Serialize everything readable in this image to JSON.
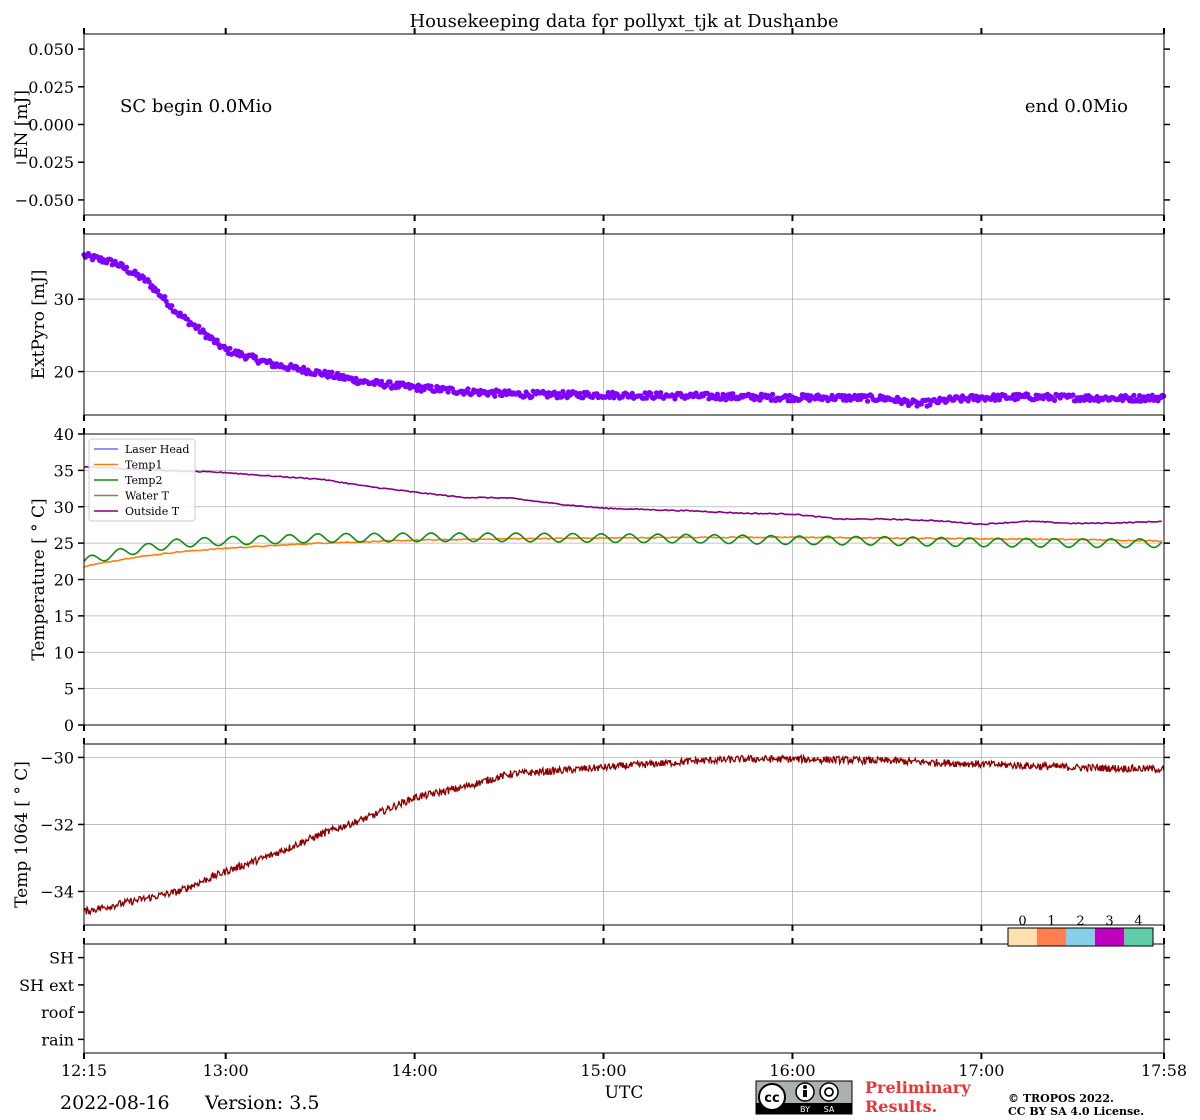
{
  "title": "Housekeeping data for pollyxt_tjk at Dushanbe",
  "footer": {
    "date": "2022-08-16",
    "version": "Version: 3.5",
    "preliminary_line1": "Preliminary",
    "preliminary_line2": "Results.",
    "copyright_line1": "© TROPOS 2022.",
    "copyright_line2": "CC BY SA 4.0 License.",
    "license_badge": {
      "cc": "cc",
      "by": "BY",
      "sa": "SA"
    }
  },
  "chart_data": [
    {
      "type": "line",
      "panel": "energy",
      "ylabel": "EN [mJ]",
      "ylim": [
        -0.06,
        0.06
      ],
      "yticks": [
        "0.050",
        "0.025",
        "0.000",
        "−0.025",
        "−0.050"
      ],
      "ytick_values": [
        0.05,
        0.025,
        0.0,
        -0.025,
        -0.05
      ],
      "annotations": [
        "SC begin 0.0Mio",
        "end 0.0Mio"
      ],
      "x_range": [
        "12:15",
        "17:58"
      ]
    },
    {
      "type": "scatter",
      "panel": "extpyro",
      "ylabel": "ExtPyro [mJ]",
      "ylim": [
        14,
        39
      ],
      "yticks": [
        "30",
        "20"
      ],
      "ytick_values": [
        30,
        20
      ],
      "color": "#8000ff",
      "x": [
        "12:15",
        "12:25",
        "12:35",
        "12:45",
        "13:00",
        "13:15",
        "13:30",
        "13:45",
        "14:00",
        "14:15",
        "14:30",
        "14:45",
        "15:00",
        "15:15",
        "15:30",
        "15:45",
        "16:00",
        "16:15",
        "16:30",
        "16:40",
        "16:50",
        "17:00",
        "17:15",
        "17:30",
        "17:45",
        "17:58"
      ],
      "y": [
        36.0,
        35.0,
        32.5,
        28.0,
        23.0,
        21.0,
        19.8,
        18.5,
        17.8,
        17.3,
        16.9,
        16.8,
        16.8,
        16.7,
        16.6,
        16.5,
        16.4,
        16.4,
        16.3,
        15.5,
        16.1,
        16.4,
        16.5,
        16.4,
        16.3,
        16.4
      ]
    },
    {
      "type": "line",
      "panel": "temperature",
      "ylabel": "Temperature [$^\\circ C$]",
      "ylabel_display": "Temperature [ ° C]",
      "ylim": [
        0,
        40
      ],
      "yticks": [
        "40",
        "35",
        "30",
        "25",
        "20",
        "15",
        "10",
        "5",
        "0"
      ],
      "ytick_values": [
        40,
        35,
        30,
        25,
        20,
        15,
        10,
        5,
        0
      ],
      "legend": [
        "Laser Head",
        "Temp1",
        "Temp2",
        "Water T",
        "Outside T"
      ],
      "legend_position": "upper-left",
      "series": [
        {
          "name": "Laser Head",
          "color": "#6b6bff",
          "values": []
        },
        {
          "name": "Temp1",
          "color": "#ff7f0e",
          "x": [
            "12:15",
            "12:30",
            "12:45",
            "13:00",
            "13:30",
            "14:00",
            "14:30",
            "15:00",
            "15:30",
            "16:00",
            "16:30",
            "17:00",
            "17:30",
            "17:58"
          ],
          "values": [
            21.8,
            23.0,
            23.8,
            24.3,
            25.0,
            25.4,
            25.6,
            25.7,
            25.8,
            25.8,
            25.7,
            25.6,
            25.5,
            25.3
          ]
        },
        {
          "name": "Temp2",
          "color": "#138b13",
          "x": [
            "12:15",
            "12:30",
            "12:45",
            "13:00",
            "13:30",
            "14:00",
            "14:30",
            "15:00",
            "15:30",
            "16:00",
            "16:30",
            "17:00",
            "17:30",
            "17:58"
          ],
          "values": [
            22.5,
            24.0,
            25.0,
            25.3,
            25.7,
            25.8,
            25.8,
            25.7,
            25.6,
            25.4,
            25.3,
            25.1,
            25.0,
            25.0
          ],
          "oscillation": 0.6
        },
        {
          "name": "Water T",
          "color": "#7f7f7f",
          "values": []
        },
        {
          "name": "Outside T",
          "color": "#800080",
          "x": [
            "12:15",
            "12:30",
            "12:45",
            "13:00",
            "13:15",
            "13:30",
            "13:45",
            "14:00",
            "14:15",
            "14:30",
            "14:45",
            "15:00",
            "15:15",
            "15:30",
            "15:45",
            "16:00",
            "16:15",
            "16:30",
            "16:45",
            "17:00",
            "17:15",
            "17:30",
            "17:45",
            "17:58"
          ],
          "values": [
            35.5,
            35.2,
            34.9,
            34.7,
            34.2,
            33.8,
            32.8,
            32.0,
            31.3,
            31.2,
            30.4,
            29.8,
            29.6,
            29.4,
            29.1,
            29.0,
            28.3,
            28.3,
            28.1,
            27.6,
            28.0,
            27.7,
            27.8,
            28.0
          ]
        }
      ]
    },
    {
      "type": "line",
      "panel": "temp1064",
      "ylabel": "Temp 1064 [$^\\circ C$]",
      "ylabel_display": "Temp 1064 [ ° C]",
      "ylim": [
        -35.0,
        -29.6
      ],
      "yticks": [
        "−30",
        "−32",
        "−34"
      ],
      "ytick_values": [
        -30,
        -32,
        -34
      ],
      "color": "#8b0000",
      "x": [
        "12:15",
        "12:30",
        "12:45",
        "13:00",
        "13:15",
        "13:30",
        "13:45",
        "14:00",
        "14:15",
        "14:30",
        "14:45",
        "15:00",
        "15:15",
        "15:30",
        "15:45",
        "16:00",
        "16:30",
        "17:00",
        "17:30",
        "17:58"
      ],
      "values": [
        -34.6,
        -34.3,
        -34.0,
        -33.4,
        -32.9,
        -32.3,
        -31.8,
        -31.2,
        -30.9,
        -30.5,
        -30.4,
        -30.3,
        -30.2,
        -30.1,
        -30.05,
        -30.05,
        -30.1,
        -30.2,
        -30.3,
        -30.35
      ]
    },
    {
      "type": "heatmap",
      "panel": "status",
      "yticks": [
        "SH",
        "SH ext",
        "roof",
        "rain"
      ],
      "colorbar_labels": [
        "0",
        "1",
        "2",
        "3",
        "4"
      ],
      "colorbar_colors": [
        "#ffe0b0",
        "#ff7f50",
        "#87cee8",
        "#c000c0",
        "#60cca8"
      ],
      "values": []
    }
  ],
  "xaxis": {
    "label": "UTC",
    "ticks": [
      "12:15",
      "13:00",
      "14:00",
      "15:00",
      "16:00",
      "17:00",
      "17:58"
    ]
  }
}
